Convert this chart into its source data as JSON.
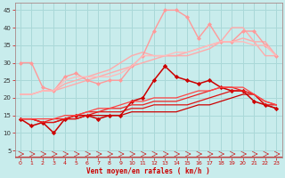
{
  "title": "",
  "xlabel": "Vent moyen/en rafales ( km/h )",
  "x": [
    0,
    1,
    2,
    3,
    4,
    5,
    6,
    7,
    8,
    9,
    10,
    11,
    12,
    13,
    14,
    15,
    16,
    17,
    18,
    19,
    20,
    21,
    22,
    23
  ],
  "background_color": "#c8ecec",
  "grid_color": "#aad8d8",
  "lines": [
    {
      "y": [
        21,
        21,
        22,
        22,
        23,
        24,
        25,
        26,
        27,
        28,
        29,
        30,
        31,
        32,
        32,
        33,
        34,
        35,
        36,
        36,
        37,
        36,
        32,
        32
      ],
      "color": "#ffaaaa",
      "lw": 1.0,
      "marker": null,
      "ms": 0
    },
    {
      "y": [
        21,
        21,
        22,
        22,
        24,
        25,
        26,
        27,
        28,
        30,
        32,
        33,
        32,
        32,
        32,
        32,
        33,
        34,
        36,
        40,
        40,
        36,
        36,
        32
      ],
      "color": "#ffaaaa",
      "lw": 1.0,
      "marker": null,
      "ms": 0
    },
    {
      "y": [
        30,
        30,
        23,
        22,
        26,
        27,
        25,
        24,
        25,
        25,
        29,
        32,
        39,
        45,
        45,
        43,
        37,
        41,
        36,
        36,
        39,
        39,
        35,
        32
      ],
      "color": "#ff9999",
      "lw": 1.0,
      "marker": "D",
      "ms": 2.0
    },
    {
      "y": [
        21,
        21,
        22,
        22,
        25,
        26,
        26,
        26,
        26,
        27,
        29,
        32,
        32,
        32,
        33,
        33,
        34,
        35,
        36,
        36,
        36,
        35,
        35,
        32
      ],
      "color": "#ffbbbb",
      "lw": 1.0,
      "marker": null,
      "ms": 0
    },
    {
      "y": [
        14,
        12,
        13,
        10,
        14,
        15,
        15,
        14,
        15,
        15,
        19,
        20,
        25,
        29,
        26,
        25,
        24,
        25,
        23,
        22,
        22,
        19,
        18,
        17
      ],
      "color": "#cc0000",
      "lw": 1.1,
      "marker": "D",
      "ms": 2.2
    },
    {
      "y": [
        14,
        14,
        13,
        13,
        14,
        14,
        15,
        15,
        15,
        15,
        16,
        16,
        16,
        16,
        16,
        17,
        18,
        18,
        19,
        20,
        21,
        21,
        18,
        17
      ],
      "color": "#cc0000",
      "lw": 0.9,
      "marker": null,
      "ms": 0
    },
    {
      "y": [
        14,
        14,
        13,
        13,
        14,
        14,
        15,
        16,
        16,
        16,
        17,
        17,
        18,
        18,
        18,
        18,
        19,
        20,
        21,
        22,
        22,
        21,
        18,
        18
      ],
      "color": "#dd1111",
      "lw": 0.9,
      "marker": null,
      "ms": 0
    },
    {
      "y": [
        14,
        14,
        13,
        14,
        14,
        15,
        16,
        16,
        17,
        17,
        18,
        18,
        19,
        19,
        19,
        20,
        21,
        22,
        23,
        23,
        22,
        21,
        19,
        18
      ],
      "color": "#ee2222",
      "lw": 0.9,
      "marker": null,
      "ms": 0
    },
    {
      "y": [
        14,
        14,
        14,
        14,
        15,
        15,
        16,
        17,
        17,
        18,
        19,
        19,
        20,
        20,
        20,
        21,
        22,
        22,
        23,
        23,
        23,
        21,
        19,
        18
      ],
      "color": "#ff4444",
      "lw": 0.9,
      "marker": null,
      "ms": 0
    }
  ],
  "wind_arrows": true,
  "yticks": [
    5,
    10,
    15,
    20,
    25,
    30,
    35,
    40,
    45
  ],
  "ylim": [
    3,
    47
  ],
  "xlim": [
    -0.5,
    23.5
  ]
}
